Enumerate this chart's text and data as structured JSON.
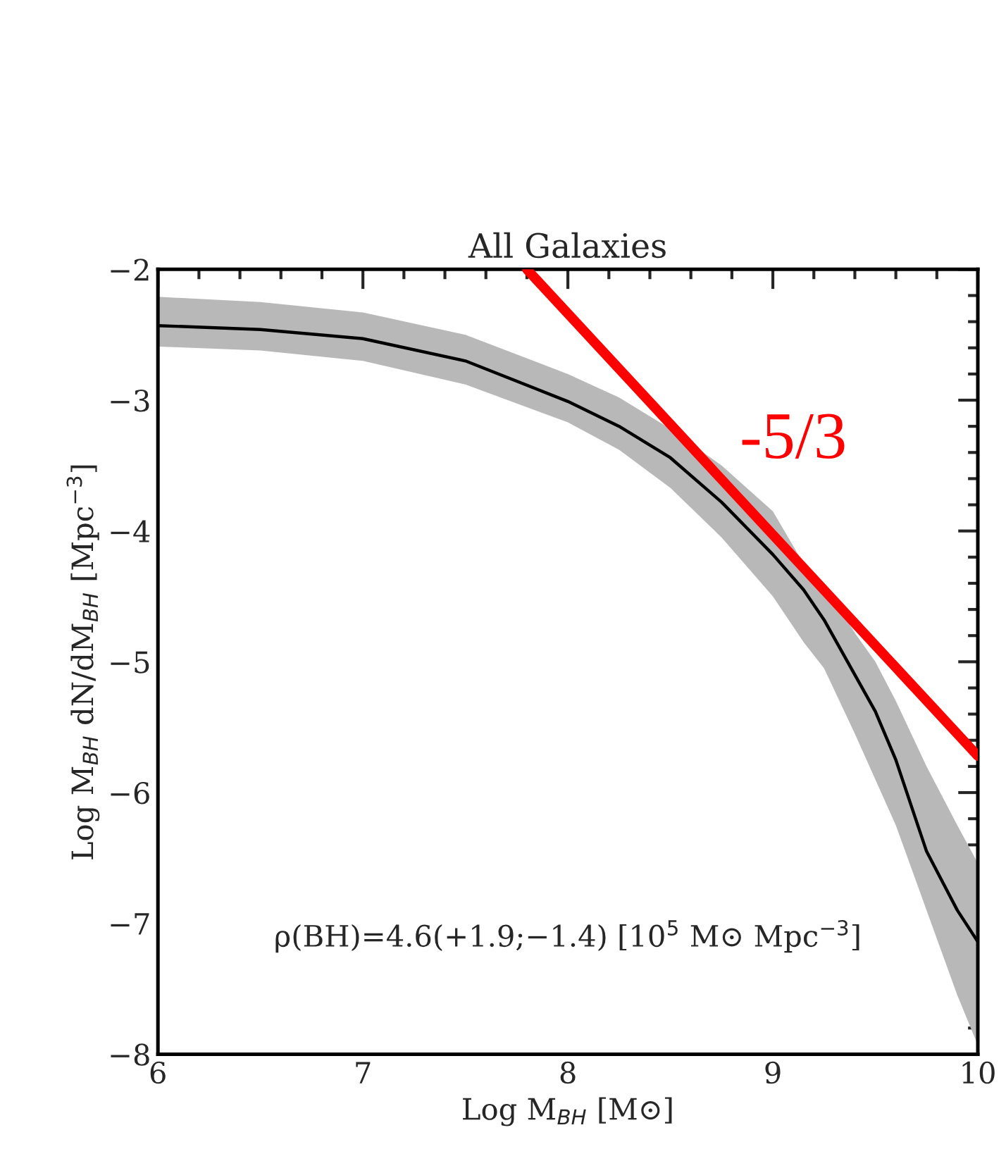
{
  "chart_data": {
    "type": "line",
    "title": "All Galaxies",
    "xlabel": "Log M$_{BH}$ [M⊙]",
    "ylabel": "Log M$_{BH}$ dN/dM$_{BH}$ [Mpc$^{−3}$]",
    "x": [
      6.0,
      6.5,
      7.0,
      7.5,
      8.0,
      8.25,
      8.5,
      8.75,
      9.0,
      9.15,
      9.25,
      9.4,
      9.5,
      9.6,
      9.75,
      9.9,
      10.0
    ],
    "series": [
      {
        "color": "#000000",
        "values": [
          -2.43,
          -2.46,
          -2.53,
          -2.7,
          -3.01,
          -3.2,
          -3.44,
          -3.78,
          -4.18,
          -4.45,
          -4.68,
          -5.1,
          -5.38,
          -5.75,
          -6.45,
          -6.9,
          -7.14
        ],
        "upper": [
          -2.21,
          -2.25,
          -2.33,
          -2.5,
          -2.8,
          -2.98,
          -3.22,
          -3.5,
          -3.85,
          -4.25,
          -4.4,
          -4.78,
          -5.0,
          -5.3,
          -5.8,
          -6.25,
          -6.54
        ],
        "lower": [
          -2.59,
          -2.62,
          -2.7,
          -2.88,
          -3.17,
          -3.38,
          -3.67,
          -4.05,
          -4.5,
          -4.85,
          -5.05,
          -5.55,
          -5.9,
          -6.25,
          -6.9,
          -7.55,
          -7.93
        ]
      },
      {
        "color": "#ff0000",
        "x": [
          7.8,
          10.0
        ],
        "values": [
          -2.0,
          -5.72
        ]
      }
    ],
    "annotations": [
      "-5/3",
      "ρ(BH)=4.6(+1.9;−1.4) [10$^{5}$ M⊙ Mpc$^{−3}$]"
    ],
    "xlim": [
      6,
      10
    ],
    "xticks": [
      6,
      7,
      8,
      9,
      10
    ],
    "ylim": [
      -8,
      -2
    ],
    "yticks": [
      {
        "value": -8,
        "label": "−8"
      },
      {
        "value": -7,
        "label": "−7"
      },
      {
        "value": -6,
        "label": "−6"
      },
      {
        "value": -5,
        "label": "−5"
      },
      {
        "value": -4,
        "label": "−4"
      },
      {
        "value": -3,
        "label": "−3"
      },
      {
        "value": -2,
        "label": "−2"
      }
    ],
    "grid": false,
    "legend": false,
    "marker": "none",
    "line_style": "solid"
  }
}
